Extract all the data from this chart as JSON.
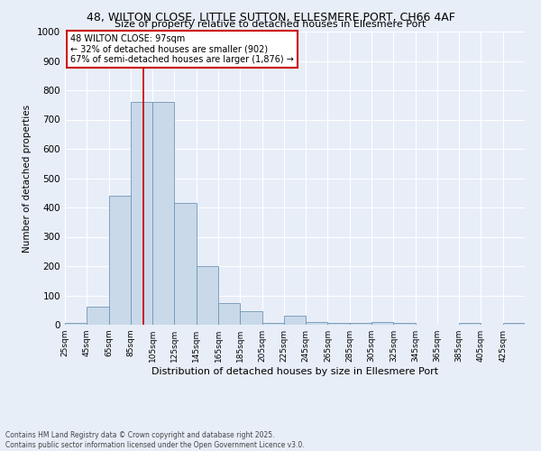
{
  "title_line1": "48, WILTON CLOSE, LITTLE SUTTON, ELLESMERE PORT, CH66 4AF",
  "title_line2": "Size of property relative to detached houses in Ellesmere Port",
  "xlabel": "Distribution of detached houses by size in Ellesmere Port",
  "ylabel": "Number of detached properties",
  "footnote": "Contains HM Land Registry data © Crown copyright and database right 2025.\nContains public sector information licensed under the Open Government Licence v3.0.",
  "annotation_title": "48 WILTON CLOSE: 97sqm",
  "annotation_line2": "← 32% of detached houses are smaller (902)",
  "annotation_line3": "67% of semi-detached houses are larger (1,876) →",
  "property_size": 97,
  "bin_edges": [
    25,
    45,
    65,
    85,
    105,
    125,
    145,
    165,
    185,
    205,
    225,
    245,
    265,
    285,
    305,
    325,
    345,
    365,
    385,
    405,
    425,
    445
  ],
  "bin_labels": [
    "25sqm",
    "45sqm",
    "65sqm",
    "85sqm",
    "105sqm",
    "125sqm",
    "145sqm",
    "165sqm",
    "185sqm",
    "205sqm",
    "225sqm",
    "245sqm",
    "265sqm",
    "285sqm",
    "305sqm",
    "325sqm",
    "345sqm",
    "365sqm",
    "385sqm",
    "405sqm",
    "425sqm"
  ],
  "bar_heights": [
    5,
    63,
    440,
    760,
    760,
    415,
    200,
    75,
    45,
    5,
    30,
    10,
    5,
    5,
    10,
    5,
    0,
    0,
    5,
    0,
    5
  ],
  "bar_color": "#c9d9ea",
  "bar_edge_color": "#7096b4",
  "red_line_color": "#cc0000",
  "annotation_box_color": "#cc0000",
  "bg_color": "#e8eef8",
  "grid_color": "#ffffff",
  "ylim": [
    0,
    1000
  ],
  "yticks": [
    0,
    100,
    200,
    300,
    400,
    500,
    600,
    700,
    800,
    900,
    1000
  ]
}
